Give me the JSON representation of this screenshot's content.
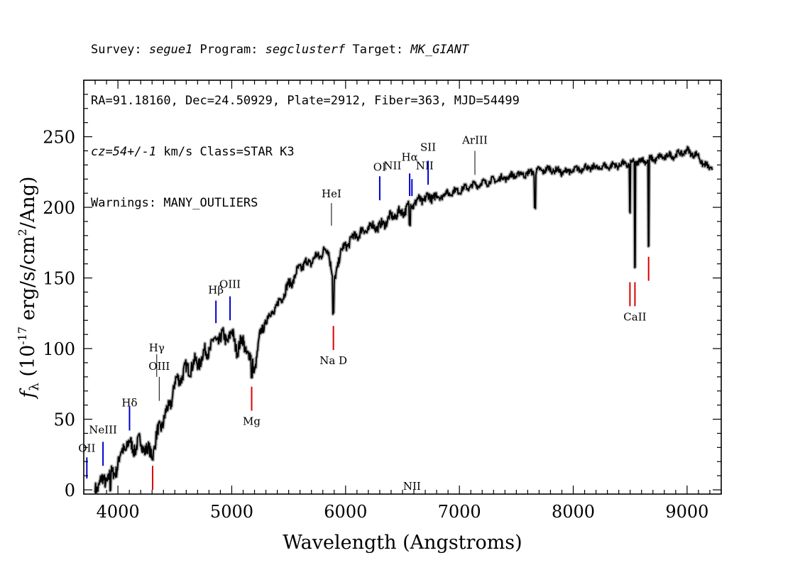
{
  "header": {
    "line1": {
      "survey_label": "Survey: ",
      "survey": "segue1",
      "program_label": " Program: ",
      "program": "segclusterf",
      "target_label": " Target: ",
      "target": "MK_GIANT"
    },
    "line2": "RA=91.18160, Dec=24.50929, Plate=2912, Fiber=363, MJD=54499",
    "line3": {
      "cz": "cz=54+/-1",
      "rest": " km/s Class=STAR K3"
    },
    "line4": "Warnings: MANY_OUTLIERS"
  },
  "chart_data": {
    "type": "line",
    "xlabel": "Wavelength (Angstroms)",
    "ylabel": "f_λ (10^-17 erg/s/cm^2/Ang)",
    "xlim": [
      3700,
      9300
    ],
    "ylim": [
      -3,
      290
    ],
    "x_ticks": [
      4000,
      5000,
      6000,
      7000,
      8000,
      9000
    ],
    "y_ticks": [
      0,
      50,
      100,
      150,
      200,
      250
    ],
    "grid": false,
    "colors": {
      "spectrum": "#000000",
      "error_band": "#b0b0b0",
      "emission": "#0000cc",
      "absorption": "#dd0000"
    },
    "series": [
      {
        "x": [
          3800,
          3850,
          3900,
          3950,
          4000,
          4050,
          4100,
          4150,
          4200,
          4250,
          4300,
          4350,
          4400,
          4450,
          4500,
          4550,
          4600,
          4650,
          4700,
          4750,
          4800,
          4850,
          4900,
          4950,
          5000,
          5050,
          5100,
          5150,
          5200,
          5250,
          5300,
          5350,
          5400,
          5450,
          5500,
          5550,
          5600,
          5650,
          5700,
          5750,
          5800,
          5850,
          5900,
          5950,
          6000,
          6050,
          6100,
          6150,
          6200,
          6250,
          6300,
          6350,
          6400,
          6450,
          6500,
          6550,
          6600,
          6650,
          6700,
          6750,
          6800,
          6900,
          7000,
          7100,
          7200,
          7300,
          7400,
          7500,
          7600,
          7700,
          7800,
          7900,
          8000,
          8100,
          8200,
          8300,
          8400,
          8500,
          8600,
          8700,
          8800,
          8900,
          9000,
          9050,
          9100,
          9150,
          9200
        ],
        "values": [
          2,
          5,
          8,
          10,
          18,
          30,
          32,
          30,
          34,
          28,
          25,
          40,
          50,
          58,
          75,
          80,
          85,
          88,
          90,
          95,
          100,
          105,
          108,
          107,
          110,
          100,
          105,
          95,
          85,
          110,
          120,
          125,
          130,
          138,
          145,
          150,
          158,
          160,
          162,
          165,
          168,
          170,
          145,
          168,
          172,
          178,
          180,
          183,
          185,
          187,
          186,
          190,
          193,
          195,
          197,
          200,
          203,
          205,
          206,
          208,
          207,
          210,
          212,
          215,
          217,
          219,
          221,
          223,
          224,
          226,
          227,
          225,
          226,
          228,
          228,
          229,
          230,
          231,
          233,
          234,
          236,
          237,
          240,
          238,
          236,
          230,
          228
        ]
      }
    ],
    "absorption_dips": [
      {
        "x": 3934,
        "y": 0
      },
      {
        "x": 4305,
        "y": 22
      },
      {
        "x": 5175,
        "y": 80
      },
      {
        "x": 5893,
        "y": 125
      },
      {
        "x": 6563,
        "y": 188
      },
      {
        "x": 7665,
        "y": 200
      },
      {
        "x": 8498,
        "y": 197
      },
      {
        "x": 8542,
        "y": 158
      },
      {
        "x": 8662,
        "y": 173
      }
    ],
    "line_labels": [
      {
        "text": "OII",
        "x": 3727,
        "label_y": 27,
        "tick": [
          8,
          23
        ],
        "color": "#0000cc",
        "group": "emission"
      },
      {
        "text": "NeIII",
        "x": 3869,
        "label_y": 40,
        "tick": [
          17,
          34
        ],
        "color": "#0000cc",
        "group": "emission"
      },
      {
        "text": "Hδ",
        "x": 4102,
        "label_y": 59,
        "tick": [
          42,
          59
        ],
        "color": "#0000cc",
        "group": "emission"
      },
      {
        "text": "Hγ",
        "x": 4341,
        "label_y": 98,
        "tick": [
          80,
          96
        ],
        "color": "#000000",
        "group": "emission"
      },
      {
        "text": "OIII",
        "x": 4363,
        "label_y": 85,
        "tick": [
          63,
          80
        ],
        "color": "#000000",
        "group": "emission"
      },
      {
        "text": "Hβ",
        "x": 4861,
        "label_y": 139,
        "tick": [
          118,
          134
        ],
        "color": "#0000cc",
        "group": "emission"
      },
      {
        "text": "OIII",
        "x": 4985,
        "label_y": 143,
        "tick": [
          120,
          137
        ],
        "color": "#0000cc",
        "group": "emission"
      },
      {
        "text": "HeI",
        "x": 5876,
        "label_y": 207,
        "tick": [
          187,
          203
        ],
        "color": "#000000",
        "group": "emission"
      },
      {
        "text": "OI",
        "x": 6300,
        "label_y": 226,
        "tick": [
          205,
          222
        ],
        "color": "#0000cc",
        "group": "emission"
      },
      {
        "text": "NII",
        "x": 6412,
        "label_y": 227,
        "tick": [
          0,
          0
        ],
        "color": "#000000",
        "group": "emission"
      },
      {
        "text": "Hα",
        "x": 6563,
        "label_y": 233,
        "tick": [
          208,
          224
        ],
        "color": "#0000cc",
        "group": "emission"
      },
      {
        "text": "NII",
        "x": 6583,
        "label_y": 0,
        "tick": [
          208,
          220
        ],
        "color": "#0000cc",
        "group": "emission"
      },
      {
        "text": "NII",
        "x": 6695,
        "label_y": 227,
        "tick": [
          0,
          0
        ],
        "color": "#000000",
        "group": "emission"
      },
      {
        "text": "SII",
        "x": 6725,
        "label_y": 240,
        "tick": [
          216,
          233
        ],
        "color": "#0000cc",
        "group": "emission"
      },
      {
        "text": "ArIII",
        "x": 7136,
        "label_y": 245,
        "tick": [
          223,
          240
        ],
        "color": "#000000",
        "group": "emission"
      },
      {
        "text": "",
        "x": 4305,
        "label_y": 0,
        "tick": [
          0,
          17
        ],
        "color": "#dd0000",
        "group": "absorption"
      },
      {
        "text": "Mg",
        "x": 5175,
        "label_y": 46,
        "tick": [
          56,
          73
        ],
        "color": "#dd0000",
        "group": "absorption"
      },
      {
        "text": "Na D",
        "x": 5893,
        "label_y": 89,
        "tick": [
          99,
          116
        ],
        "color": "#dd0000",
        "group": "absorption"
      },
      {
        "text": "CaII",
        "x": 8542,
        "label_y": 120,
        "tick": [
          130,
          147
        ],
        "color": "#dd0000",
        "group": "absorption"
      },
      {
        "text": "",
        "x": 8498,
        "label_y": 0,
        "tick": [
          130,
          147
        ],
        "color": "#dd0000",
        "group": "absorption"
      },
      {
        "text": "",
        "x": 8662,
        "label_y": 0,
        "tick": [
          148,
          165
        ],
        "color": "#dd0000",
        "group": "absorption"
      }
    ]
  }
}
